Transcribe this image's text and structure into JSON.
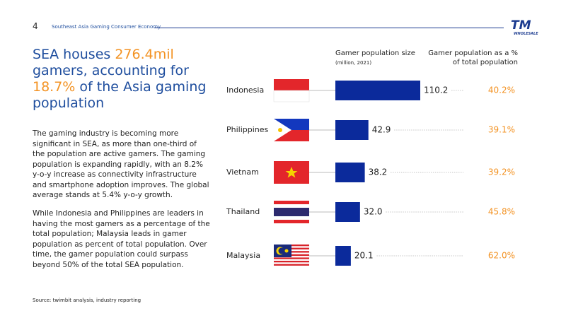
{
  "header": {
    "page_number": "4",
    "running_title": "Southeast Asia Gaming Consumer Economy",
    "logo": "TM",
    "logo_sub": "WHOLESALE"
  },
  "headline": {
    "parts": [
      "SEA houses ",
      "276.4mil",
      " gamers, accounting for ",
      "18.7%",
      " of the Asia gaming population"
    ]
  },
  "body": {
    "paragraphs": [
      "The gaming industry is becoming more significant in SEA, as more than one-third of the population are active gamers. The gaming population is expanding rapidly, with an 8.2% y-o-y increase as connectivity infrastructure and smartphone adoption improves. The global average stands at 5.4% y-o-y growth.",
      "While Indonesia and Philippines are leaders in having the most gamers as a percentage of the total population; Malaysia leads in gamer population as percent of total population. Over time, the gamer population could surpass beyond 50% of the total SEA population."
    ]
  },
  "source": "Source: twimbit analysis, industry reporting",
  "chart_data": {
    "type": "bar",
    "orientation": "horizontal",
    "categories": [
      "Indonesia",
      "Philippines",
      "Vietnam",
      "Thailand",
      "Malaysia"
    ],
    "series": [
      {
        "name": "Gamer population size",
        "note": "(million, 2021)",
        "color": "#0b2a9b",
        "values": [
          110.2,
          42.9,
          38.2,
          32.0,
          20.1
        ],
        "value_labels": [
          "110.2",
          "42.9",
          "38.2",
          "32.0",
          "20.1"
        ]
      },
      {
        "name": "Gamer population as a % of total population",
        "color": "#f39324",
        "values": [
          40.2,
          39.1,
          39.2,
          45.8,
          62.0
        ],
        "value_labels": [
          "40.2%",
          "39.1%",
          "39.2%",
          "45.8%",
          "62.0%"
        ]
      }
    ]
  }
}
